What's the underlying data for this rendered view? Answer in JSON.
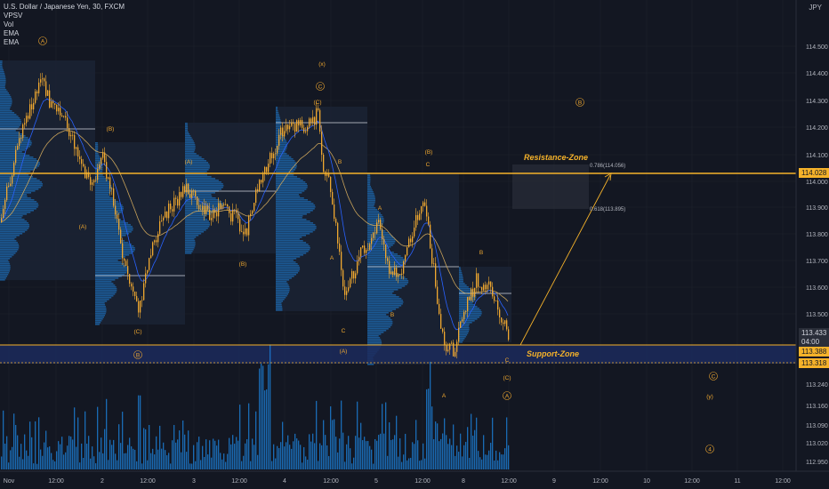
{
  "header": {
    "symbol_line": "U.S. Dollar / Japanese Yen, 30, FXCM",
    "indicators": [
      "VPSV",
      "Vol",
      "EMA",
      "EMA"
    ]
  },
  "axis": {
    "currency": "JPY",
    "y_ticks": [
      "114.500",
      "114.400",
      "114.300",
      "114.200",
      "114.100",
      "114.000",
      "113.900",
      "113.800",
      "113.700",
      "113.600",
      "113.500",
      "113.240",
      "113.160",
      "113.090",
      "113.020",
      "112.950"
    ],
    "x_ticks": [
      "Nov",
      "12:00",
      "2",
      "12:00",
      "3",
      "12:00",
      "4",
      "12:00",
      "5",
      "12:00",
      "8",
      "12:00",
      "9",
      "12:00",
      "10",
      "12:00",
      "11",
      "12:00"
    ]
  },
  "price_tags": {
    "current": "113.433",
    "countdown": "04:00",
    "resistance": "114.028",
    "support": "113.388",
    "low": "113.318"
  },
  "zones": {
    "resistance": "Resistance-Zone",
    "support": "Support-Zone"
  },
  "fib": {
    "upper": "0.786(114.056)",
    "lower": "0.618(113.895)"
  },
  "labels": {
    "circle_a": "A",
    "x": "(x)",
    "circle_c": "C",
    "c_paren": "(C)",
    "b_paren": "(B)",
    "a_paren": "(A)",
    "b": "B",
    "a": "A",
    "c": "C",
    "circle_b": "B",
    "y": "(y)",
    "circle_4": "4"
  },
  "colors": {
    "background": "#131722",
    "candle": "#f0a830",
    "zone_line": "#f5b22a",
    "ema_fast": "#2962ff",
    "ema_slow": "#c8a25a",
    "volume_profile": "#1e88e5",
    "support_band": "#1c2a5c"
  }
}
